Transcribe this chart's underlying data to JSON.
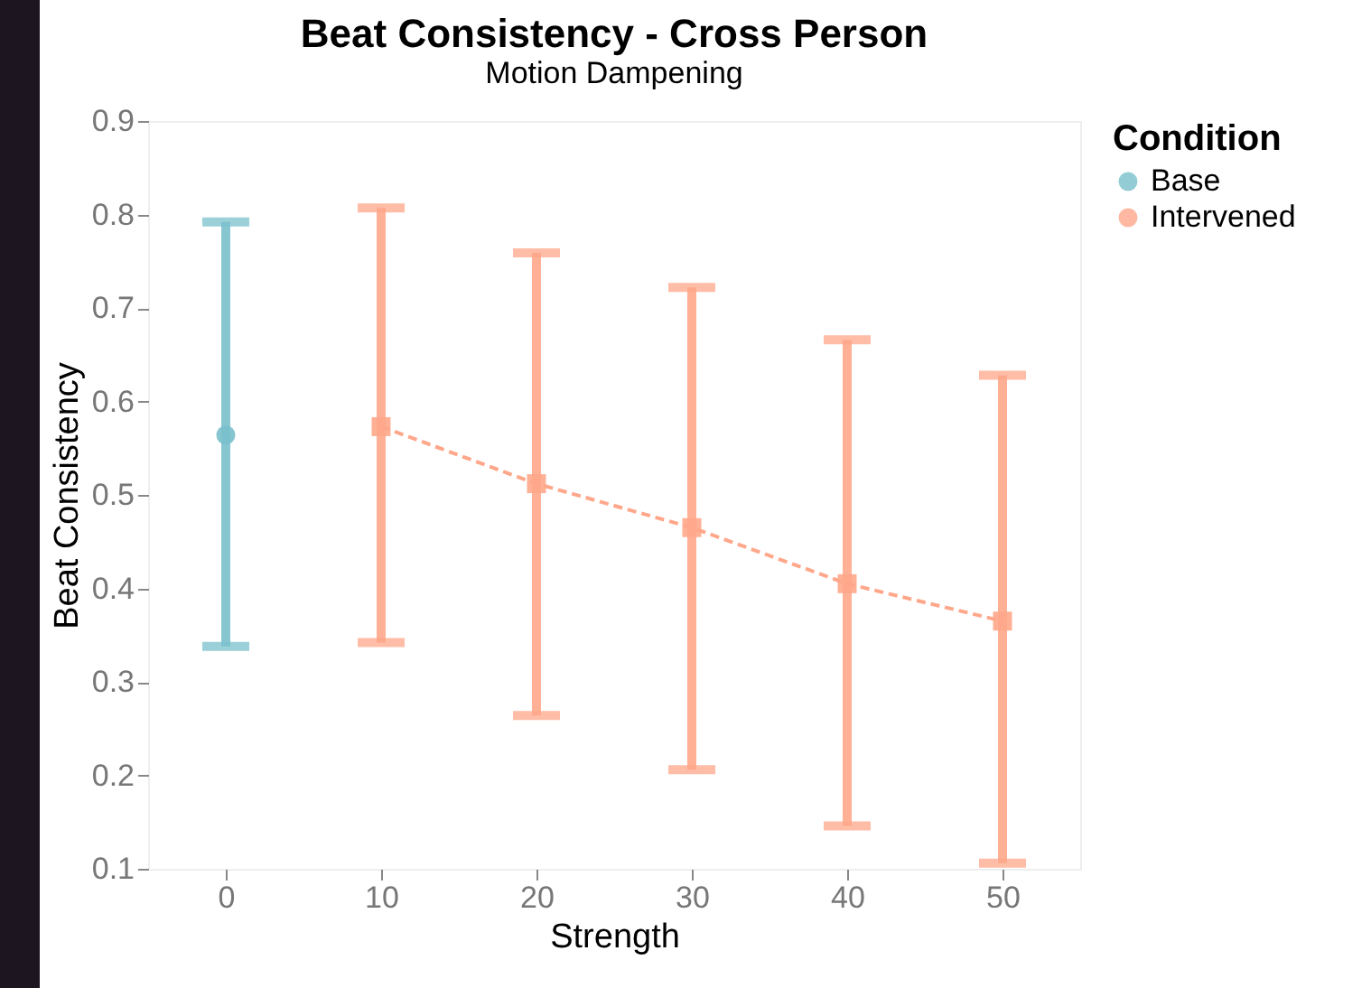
{
  "chart_data": {
    "type": "line",
    "title": "Beat Consistency - Cross Person",
    "subtitle": "Motion Dampening",
    "xlabel": "Strength",
    "ylabel": "Beat Consistency",
    "legend_title": "Condition",
    "legend": "top right",
    "grid": false,
    "xlim": [
      -5,
      55
    ],
    "xticks": [
      0,
      10,
      20,
      30,
      40,
      50
    ],
    "ylim": [
      0.1,
      0.9
    ],
    "yticks": [
      0.1,
      0.2,
      0.3,
      0.4,
      0.5,
      0.6,
      0.7,
      0.8,
      0.9
    ],
    "series": [
      {
        "name": "Base",
        "type": "scatter",
        "marker": "circle",
        "color": "#7ac0cc",
        "x": [
          0
        ],
        "values": [
          0.564
        ],
        "errors": [
          [
            0.338,
            0.792
          ]
        ]
      },
      {
        "name": "Intervened",
        "type": "line",
        "marker": "square",
        "line_style": "dashed",
        "color": "#ffa78a",
        "x": [
          10,
          20,
          30,
          40,
          50
        ],
        "values": [
          0.573,
          0.512,
          0.465,
          0.405,
          0.365
        ],
        "errors": [
          [
            0.342,
            0.807
          ],
          [
            0.264,
            0.759
          ],
          [
            0.206,
            0.722
          ],
          [
            0.146,
            0.666
          ],
          [
            0.106,
            0.628
          ]
        ]
      }
    ]
  }
}
